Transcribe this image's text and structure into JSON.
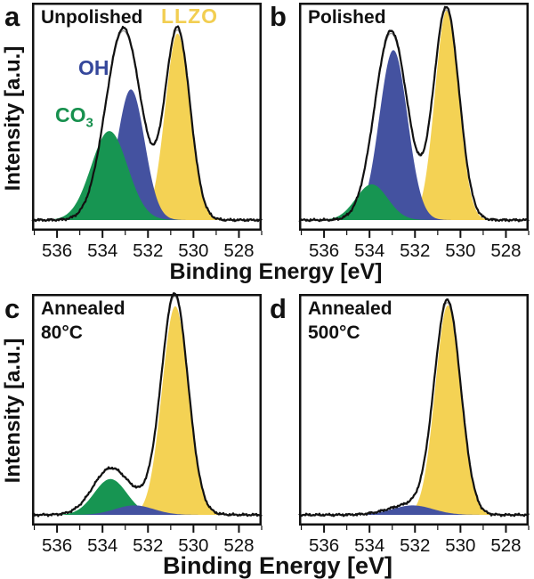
{
  "figure": {
    "xlabel": "Binding Energy [eV]",
    "ylabel": "Intensity [a.u.]",
    "colors": {
      "llzo": "#F4D254",
      "oh": "#4452A0",
      "co3": "#179552",
      "llzo_label": "#F2CE51",
      "oh_label": "#35479B",
      "co3_label": "#17904E",
      "line": "#111111",
      "fit": "#9A9A9A"
    }
  },
  "chart_data": [
    {
      "type": "area",
      "panel": "a",
      "title": "Unpolished",
      "xlabel": "Binding Energy [eV]",
      "ylabel": "Intensity [a.u.]",
      "x_range": [
        537.1,
        527.0
      ],
      "x_ticks": [
        536,
        534,
        532,
        530,
        528
      ],
      "x_minor_ticks": [
        537,
        535,
        533,
        531,
        529,
        527
      ],
      "amp_frac": 0.83,
      "series": [
        {
          "name": "LLZO",
          "color": "llzo",
          "center": 530.7,
          "sigma": 0.54,
          "amplitude": 0.985
        },
        {
          "name": "OH",
          "color": "oh",
          "center": 532.75,
          "sigma": 0.6,
          "amplitude": 0.69
        },
        {
          "name": "CO3",
          "color": "co3",
          "center": 533.7,
          "sigma": 0.8,
          "amplitude": 0.47
        }
      ],
      "envelope": [
        {
          "center": 533.08,
          "sigma": 0.78,
          "amplitude": 1.0
        },
        {
          "center": 530.7,
          "sigma": 0.55,
          "amplitude": 0.995
        }
      ],
      "annotations": {
        "llzo": {
          "text": "LLZO"
        },
        "oh": {
          "text": "OH"
        },
        "co3": {
          "text": "CO",
          "sub": "3"
        }
      }
    },
    {
      "type": "area",
      "panel": "b",
      "title": "Polished",
      "xlabel": "Binding Energy [eV]",
      "ylabel": "Intensity [a.u.]",
      "x_range": [
        537.1,
        527.0
      ],
      "x_ticks": [
        536,
        534,
        532,
        530,
        528
      ],
      "x_minor_ticks": [
        537,
        535,
        533,
        531,
        529,
        527
      ],
      "amp_frac": 0.92,
      "series": [
        {
          "name": "LLZO",
          "color": "llzo",
          "center": 530.6,
          "sigma": 0.52,
          "amplitude": 1.0
        },
        {
          "name": "OH",
          "color": "oh",
          "center": 532.95,
          "sigma": 0.62,
          "amplitude": 0.81
        },
        {
          "name": "CO3",
          "color": "co3",
          "center": 533.9,
          "sigma": 0.7,
          "amplitude": 0.17
        }
      ],
      "envelope": [
        {
          "center": 533.05,
          "sigma": 0.72,
          "amplitude": 0.89
        },
        {
          "center": 530.62,
          "sigma": 0.56,
          "amplitude": 1.0
        }
      ]
    },
    {
      "type": "area",
      "panel": "c",
      "title": "Annealed\n80°C",
      "xlabel": "Binding Energy [eV]",
      "ylabel": "Intensity [a.u.]",
      "x_range": [
        537.1,
        527.0
      ],
      "x_ticks": [
        536,
        534,
        532,
        530,
        528
      ],
      "x_minor_ticks": [
        537,
        535,
        533,
        531,
        529,
        527
      ],
      "amp_frac": 0.91,
      "series": [
        {
          "name": "LLZO",
          "color": "llzo",
          "center": 530.8,
          "sigma": 0.58,
          "amplitude": 0.99
        },
        {
          "name": "CO3",
          "color": "co3",
          "center": 533.65,
          "sigma": 0.72,
          "amplitude": 0.17
        },
        {
          "name": "OH",
          "color": "oh",
          "center": 532.6,
          "sigma": 0.85,
          "amplitude": 0.045
        }
      ],
      "envelope": [
        {
          "center": 533.7,
          "sigma": 0.75,
          "amplitude": 0.185
        },
        {
          "center": 532.2,
          "sigma": 1.3,
          "amplitude": 0.065
        },
        {
          "center": 530.82,
          "sigma": 0.58,
          "amplitude": 1.0
        }
      ]
    },
    {
      "type": "area",
      "panel": "d",
      "title": "Annealed\n500°C",
      "xlabel": "Binding Energy [eV]",
      "ylabel": "Intensity [a.u.]",
      "x_range": [
        537.1,
        527.0
      ],
      "x_ticks": [
        536,
        534,
        532,
        530,
        528
      ],
      "x_minor_ticks": [
        537,
        535,
        533,
        531,
        529,
        527
      ],
      "amp_frac": 0.905,
      "series": [
        {
          "name": "LLZO",
          "color": "llzo",
          "center": 530.55,
          "sigma": 0.56,
          "amplitude": 1.0
        },
        {
          "name": "OH",
          "color": "oh",
          "center": 532.1,
          "sigma": 0.9,
          "amplitude": 0.045
        }
      ],
      "envelope": [
        {
          "center": 532.15,
          "sigma": 0.95,
          "amplitude": 0.05
        },
        {
          "center": 530.57,
          "sigma": 0.58,
          "amplitude": 1.0
        }
      ]
    }
  ]
}
